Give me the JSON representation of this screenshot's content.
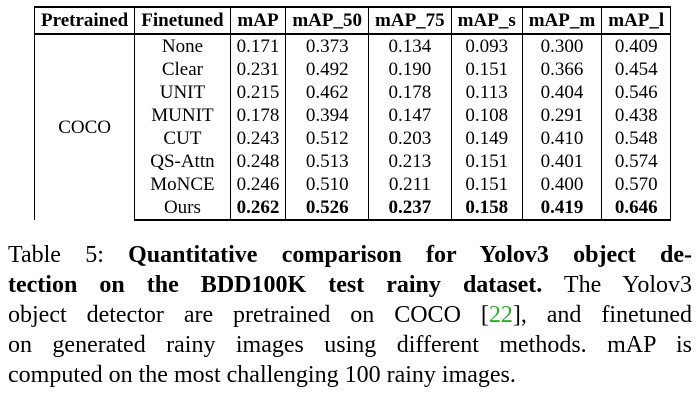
{
  "table": {
    "headers": [
      "Pretrained",
      "Finetuned",
      "mAP",
      "mAP_50",
      "mAP_75",
      "mAP_s",
      "mAP_m",
      "mAP_l"
    ],
    "pretrained": "COCO",
    "rows": [
      {
        "method": "None",
        "values": [
          "0.171",
          "0.373",
          "0.134",
          "0.093",
          "0.300",
          "0.409"
        ]
      },
      {
        "method": "Clear",
        "values": [
          "0.231",
          "0.492",
          "0.190",
          "0.151",
          "0.366",
          "0.454"
        ]
      },
      {
        "method": "UNIT",
        "values": [
          "0.215",
          "0.462",
          "0.178",
          "0.113",
          "0.404",
          "0.546"
        ]
      },
      {
        "method": "MUNIT",
        "values": [
          "0.178",
          "0.394",
          "0.147",
          "0.108",
          "0.291",
          "0.438"
        ]
      },
      {
        "method": "CUT",
        "values": [
          "0.243",
          "0.512",
          "0.203",
          "0.149",
          "0.410",
          "0.548"
        ]
      },
      {
        "method": "QS-Attn",
        "values": [
          "0.248",
          "0.513",
          "0.213",
          "0.151",
          "0.401",
          "0.574"
        ]
      },
      {
        "method": "MoNCE",
        "values": [
          "0.246",
          "0.510",
          "0.211",
          "0.151",
          "0.400",
          "0.570"
        ]
      },
      {
        "method": "Ours",
        "values": [
          "0.262",
          "0.526",
          "0.237",
          "0.158",
          "0.419",
          "0.646"
        ]
      }
    ]
  },
  "caption": {
    "label": "Table 5:",
    "bold_line1": "Quantitative comparison for Yolov3 object de-",
    "bold_line2": "tection on the BDD100K test rainy dataset.",
    "rest_line2": "The Yolov3",
    "line3_pre": "object detector are pretrained on COCO [",
    "cite": "22",
    "line3_post": "], and finetuned",
    "line4": "on generated rainy images using different methods. mAP is",
    "line5": "computed on the most challenging 100 rainy images."
  }
}
